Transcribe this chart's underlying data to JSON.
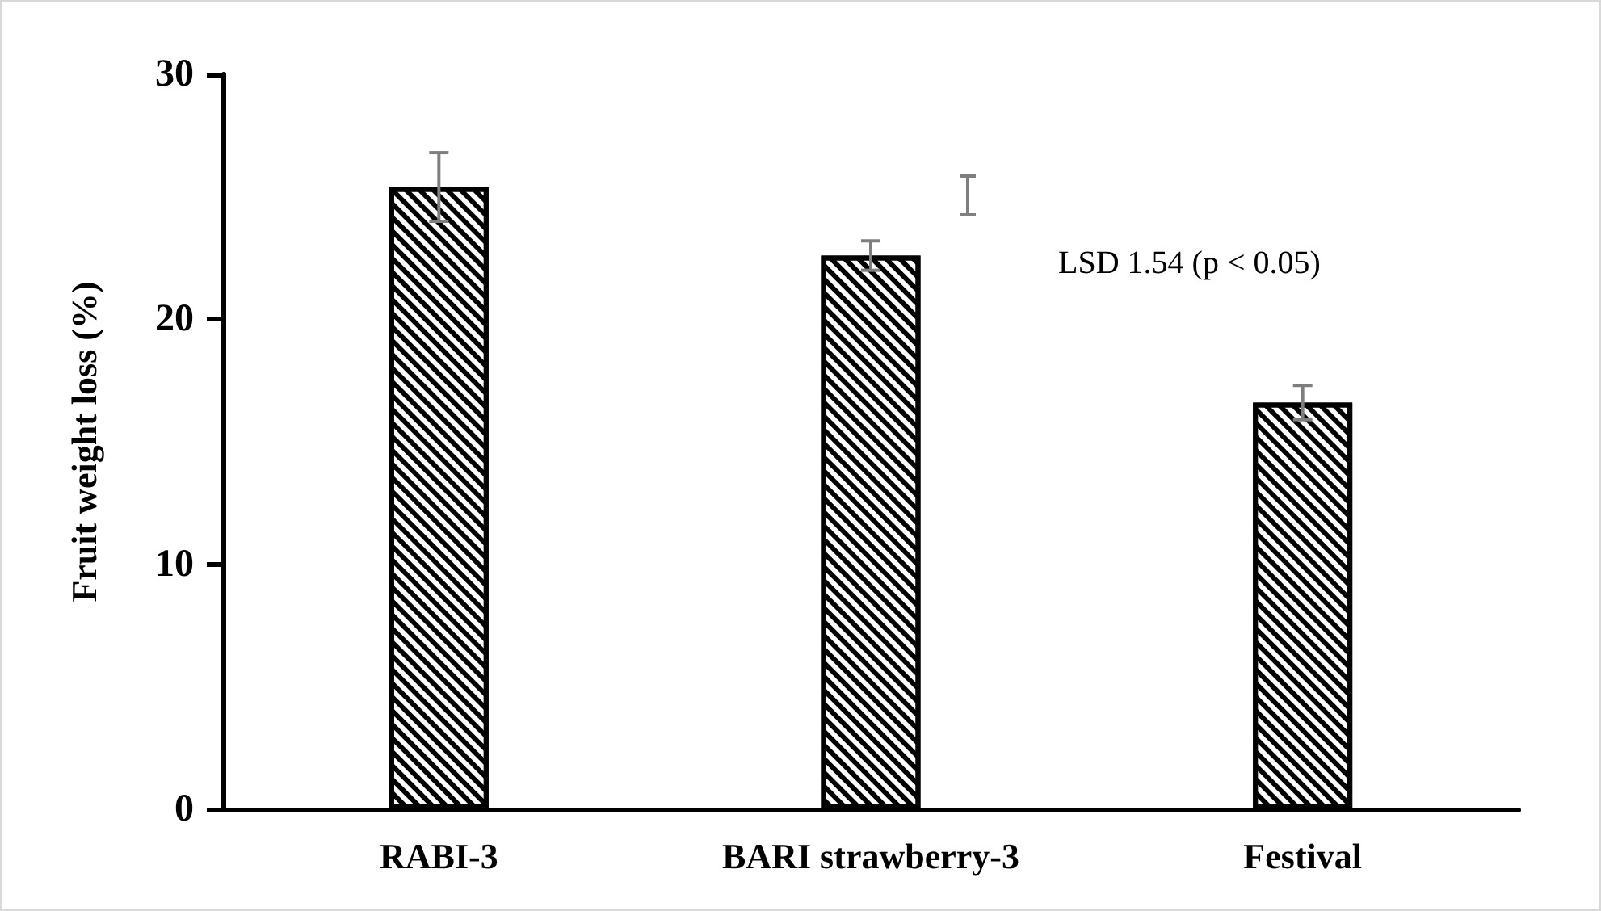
{
  "chart_data": {
    "type": "bar",
    "ylabel": "Fruit weight loss (%)",
    "categories": [
      "RABI-3",
      "BARI strawberry-3",
      "Festival"
    ],
    "series": [
      {
        "color": "#000000",
        "values": [
          25.4,
          22.6,
          16.6
        ],
        "errors": [
          1.4,
          0.6,
          0.7
        ]
      }
    ],
    "ylim": [
      0,
      30
    ],
    "yticks": [
      0,
      10,
      20,
      30
    ],
    "grid": false,
    "annotations": [
      "LSD 1.54 (p < 0.05)"
    ]
  }
}
